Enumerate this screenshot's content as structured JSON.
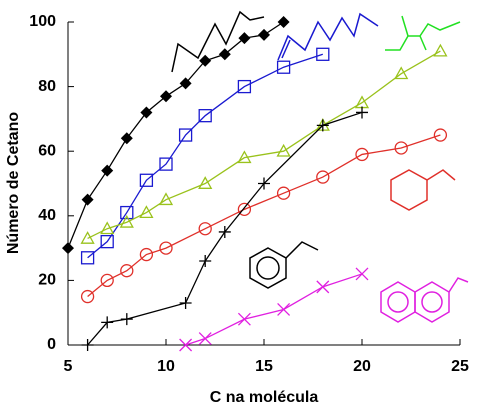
{
  "chart_data": {
    "type": "line",
    "x_label": "C na molécula",
    "y_label": "Número de Cetano",
    "xlim": [
      5,
      25
    ],
    "xticks": [
      5,
      10,
      15,
      20,
      25
    ],
    "ylim": [
      0,
      100
    ],
    "yticks": [
      0,
      20,
      40,
      60,
      80,
      100
    ],
    "series": [
      {
        "color": "#000000",
        "marker": "diamond",
        "x": [
          5,
          6,
          7,
          8,
          9,
          10,
          11,
          12,
          13,
          14,
          15,
          16
        ],
        "values": [
          30,
          45,
          54,
          64,
          72,
          77,
          81,
          88,
          90,
          95,
          96,
          100
        ]
      },
      {
        "color": "#1a1ad0",
        "marker": "square",
        "x": [
          6,
          7,
          8,
          9,
          10,
          11,
          12,
          14,
          16,
          18
        ],
        "values": [
          27,
          32,
          41,
          51,
          56,
          65,
          71,
          80,
          86,
          90
        ]
      },
      {
        "color": "#9ac21c",
        "marker": "triangle",
        "x": [
          6,
          7,
          8,
          9,
          10,
          12,
          14,
          16,
          18,
          20,
          22,
          24
        ],
        "values": [
          33,
          36,
          38,
          41,
          45,
          50,
          58,
          60,
          68,
          75,
          84,
          91
        ]
      },
      {
        "color": "#e0302a",
        "marker": "circle",
        "x": [
          6,
          7,
          8,
          9,
          10,
          12,
          14,
          16,
          18,
          20,
          22,
          24
        ],
        "values": [
          15,
          20,
          23,
          28,
          30,
          36,
          42,
          47,
          52,
          59,
          61,
          65
        ]
      },
      {
        "color": "#000000",
        "marker": "plus",
        "x": [
          6,
          7,
          8,
          11,
          12,
          13,
          15,
          18,
          20
        ],
        "values": [
          0,
          7,
          8,
          13,
          26,
          35,
          50,
          68,
          72
        ]
      },
      {
        "color": "#e020e0",
        "marker": "cross",
        "x": [
          11,
          12,
          14,
          16,
          18,
          20
        ],
        "values": [
          0,
          2,
          8,
          11,
          18,
          22
        ]
      }
    ]
  }
}
